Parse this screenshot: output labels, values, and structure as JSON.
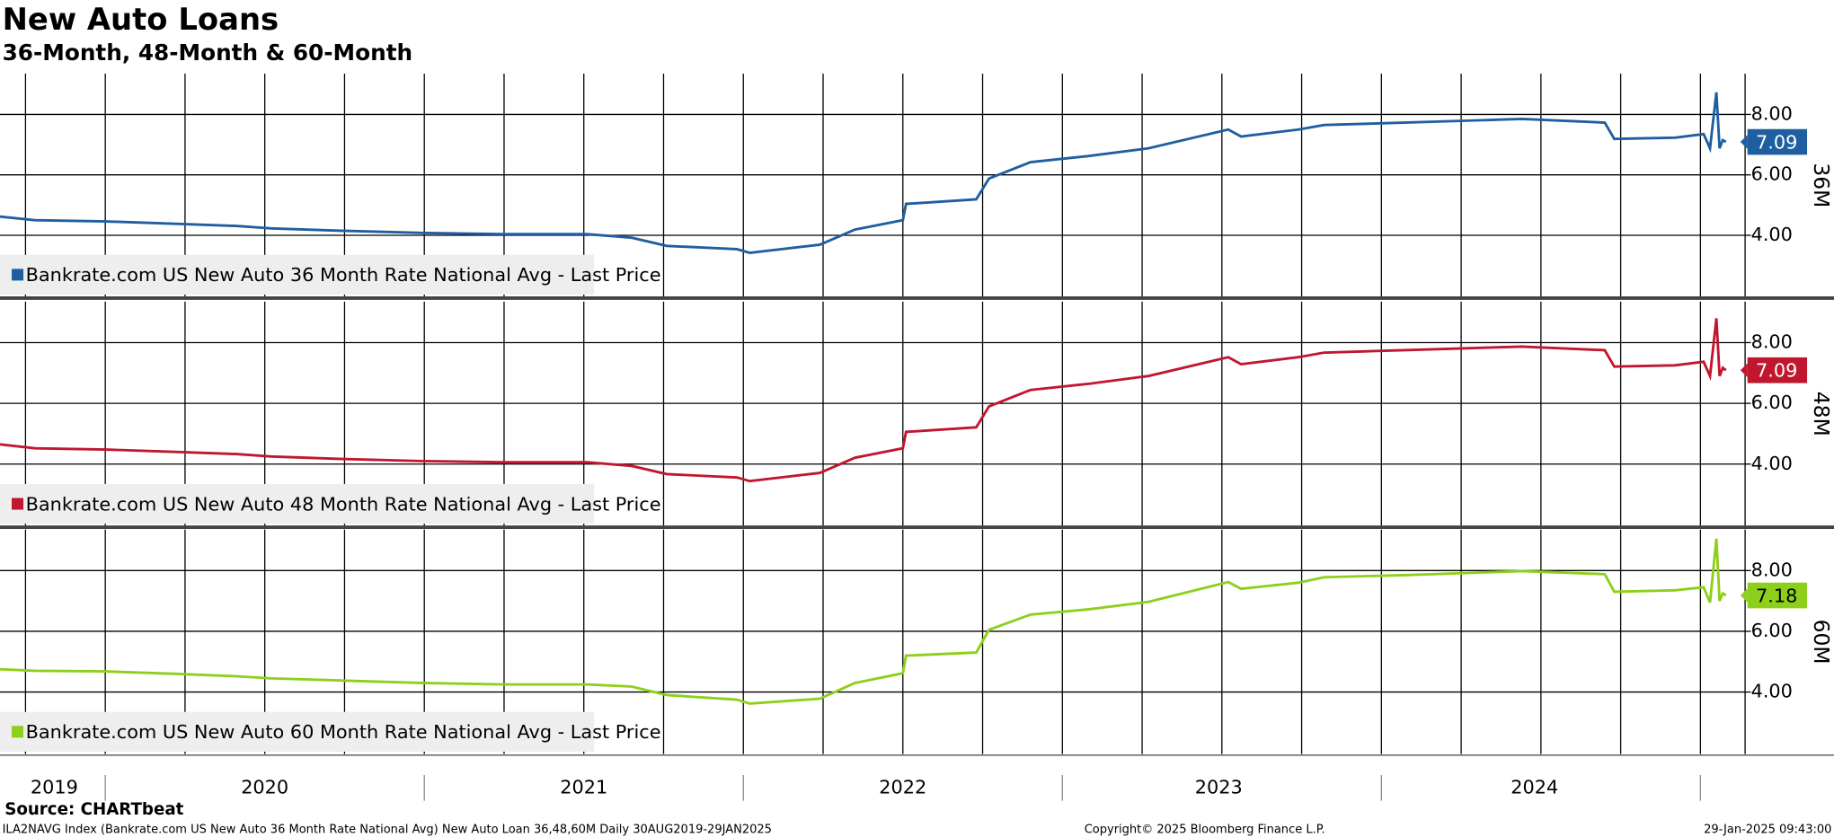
{
  "title": "New Auto Loans",
  "subtitle": "36-Month, 48-Month & 60-Month",
  "source": "Source: CHARTbeat",
  "footer": {
    "left": "ILA2NAVG Index (Bankrate.com US New Auto 36 Month Rate National Avg) New Auto Loan 36,48,60M  Daily 30AUG2019-29JAN2025",
    "center": "Copyright© 2025 Bloomberg Finance L.P.",
    "right": "29-Jan-2025 09:43:00"
  },
  "chart_data": [
    {
      "type": "line",
      "ylabel": "36M",
      "x": [
        2019.67,
        2019.78,
        2020.0,
        2020.22,
        2020.41,
        2020.52,
        2020.74,
        2020.99,
        2021.25,
        2021.51,
        2021.65,
        2021.76,
        2021.98,
        2022.02,
        2022.24,
        2022.35,
        2022.5,
        2022.51,
        2022.73,
        2022.77,
        2022.9,
        2023.08,
        2023.27,
        2023.52,
        2023.56,
        2023.74,
        2023.82,
        2024.07,
        2024.44,
        2024.7,
        2024.73,
        2024.92,
        2025.01,
        2025.03,
        2025.05,
        2025.06,
        2025.07,
        2025.08
      ],
      "xlim": [
        2019.67,
        2025.14
      ],
      "x_minor_ticks": [
        2019.75,
        2020.0,
        2020.25,
        2020.5,
        2020.75,
        2021.0,
        2021.25,
        2021.5,
        2021.75,
        2022.0,
        2022.25,
        2022.5,
        2022.75,
        2023.0,
        2023.25,
        2023.5,
        2023.75,
        2024.0,
        2024.25,
        2024.5,
        2024.75,
        2025.0
      ],
      "ylim": [
        1.96,
        9.35
      ],
      "yticks": [
        {
          "value": 4,
          "label": "4.00"
        },
        {
          "value": 6,
          "label": "6.00"
        },
        {
          "value": 8,
          "label": "8.00"
        }
      ],
      "grid": true,
      "series": [
        {
          "name": "Bankrate.com US New Auto 36 Month Rate National Avg - Last Price",
          "color": "#1f5fa0",
          "values": [
            4.62,
            4.5,
            4.46,
            4.38,
            4.31,
            4.23,
            4.15,
            4.08,
            4.04,
            4.04,
            3.92,
            3.65,
            3.54,
            3.42,
            3.69,
            4.19,
            4.5,
            5.04,
            5.19,
            5.88,
            6.42,
            6.62,
            6.88,
            7.5,
            7.27,
            7.5,
            7.65,
            7.73,
            7.85,
            7.73,
            7.19,
            7.23,
            7.35,
            6.88,
            8.73,
            6.88,
            7.15,
            7.09
          ],
          "value_labels": [
            null,
            null,
            null,
            null,
            null,
            null,
            null,
            null,
            null,
            null,
            null,
            null,
            null,
            null,
            null,
            null,
            null,
            null,
            null,
            null,
            null,
            null,
            null,
            null,
            null,
            null,
            null,
            null,
            null,
            null,
            null,
            null,
            null,
            null,
            null,
            null,
            null,
            "7.09"
          ]
        }
      ]
    },
    {
      "type": "line",
      "ylabel": "48M",
      "x": [
        2019.67,
        2019.78,
        2020.0,
        2020.22,
        2020.41,
        2020.52,
        2020.74,
        2020.99,
        2021.25,
        2021.51,
        2021.65,
        2021.76,
        2021.98,
        2022.02,
        2022.24,
        2022.35,
        2022.5,
        2022.51,
        2022.73,
        2022.77,
        2022.9,
        2023.08,
        2023.27,
        2023.52,
        2023.56,
        2023.74,
        2023.82,
        2024.07,
        2024.44,
        2024.7,
        2024.73,
        2024.92,
        2025.01,
        2025.03,
        2025.05,
        2025.06,
        2025.07,
        2025.08
      ],
      "xlim": [
        2019.67,
        2025.14
      ],
      "x_minor_ticks": [
        2019.75,
        2020.0,
        2020.25,
        2020.5,
        2020.75,
        2021.0,
        2021.25,
        2021.5,
        2021.75,
        2022.0,
        2022.25,
        2022.5,
        2022.75,
        2023.0,
        2023.25,
        2023.5,
        2023.75,
        2024.0,
        2024.25,
        2024.5,
        2024.75,
        2025.0
      ],
      "ylim": [
        1.96,
        9.35
      ],
      "yticks": [
        {
          "value": 4,
          "label": "4.00"
        },
        {
          "value": 6,
          "label": "6.00"
        },
        {
          "value": 8,
          "label": "8.00"
        }
      ],
      "grid": true,
      "series": [
        {
          "name": "Bankrate.com US New Auto 48 Month Rate National Avg - Last Price",
          "color": "#c0172f",
          "values": [
            4.65,
            4.52,
            4.48,
            4.4,
            4.33,
            4.25,
            4.17,
            4.1,
            4.06,
            4.06,
            3.94,
            3.67,
            3.56,
            3.44,
            3.71,
            4.21,
            4.52,
            5.06,
            5.21,
            5.9,
            6.44,
            6.64,
            6.9,
            7.52,
            7.29,
            7.52,
            7.67,
            7.75,
            7.87,
            7.75,
            7.21,
            7.25,
            7.37,
            6.9,
            8.8,
            6.9,
            7.17,
            7.09
          ],
          "value_labels": [
            null,
            null,
            null,
            null,
            null,
            null,
            null,
            null,
            null,
            null,
            null,
            null,
            null,
            null,
            null,
            null,
            null,
            null,
            null,
            null,
            null,
            null,
            null,
            null,
            null,
            null,
            null,
            null,
            null,
            null,
            null,
            null,
            null,
            null,
            null,
            null,
            null,
            "7.09"
          ]
        }
      ]
    },
    {
      "type": "line",
      "ylabel": "60M",
      "x": [
        2019.67,
        2019.78,
        2020.0,
        2020.22,
        2020.41,
        2020.52,
        2020.74,
        2020.99,
        2021.25,
        2021.51,
        2021.65,
        2021.76,
        2021.98,
        2022.02,
        2022.24,
        2022.35,
        2022.5,
        2022.51,
        2022.73,
        2022.77,
        2022.9,
        2023.08,
        2023.27,
        2023.52,
        2023.56,
        2023.74,
        2023.82,
        2024.07,
        2024.44,
        2024.7,
        2024.73,
        2024.92,
        2025.01,
        2025.03,
        2025.05,
        2025.06,
        2025.07,
        2025.08
      ],
      "xlim": [
        2019.67,
        2025.14
      ],
      "x_minor_ticks": [
        2019.75,
        2020.0,
        2020.25,
        2020.5,
        2020.75,
        2021.0,
        2021.25,
        2021.5,
        2021.75,
        2022.0,
        2022.25,
        2022.5,
        2022.75,
        2023.0,
        2023.25,
        2023.5,
        2023.75,
        2024.0,
        2024.25,
        2024.5,
        2024.75,
        2025.0
      ],
      "xticks": [
        {
          "value": 2019.84,
          "label": "2019"
        },
        {
          "value": 2020.5,
          "label": "2020"
        },
        {
          "value": 2021.5,
          "label": "2021"
        },
        {
          "value": 2022.5,
          "label": "2022"
        },
        {
          "value": 2023.49,
          "label": "2023"
        },
        {
          "value": 2024.48,
          "label": "2024"
        }
      ],
      "ylim": [
        1.96,
        9.35
      ],
      "yticks": [
        {
          "value": 4,
          "label": "4.00"
        },
        {
          "value": 6,
          "label": "6.00"
        },
        {
          "value": 8,
          "label": "8.00"
        }
      ],
      "grid": true,
      "series": [
        {
          "name": "Bankrate.com US New Auto 60 Month Rate National Avg - Last Price",
          "color": "#8dcf1b",
          "values": [
            4.75,
            4.7,
            4.68,
            4.6,
            4.52,
            4.45,
            4.38,
            4.3,
            4.25,
            4.25,
            4.18,
            3.9,
            3.75,
            3.62,
            3.78,
            4.3,
            4.62,
            5.2,
            5.3,
            6.05,
            6.55,
            6.72,
            6.97,
            7.62,
            7.4,
            7.6,
            7.78,
            7.85,
            7.98,
            7.88,
            7.3,
            7.35,
            7.45,
            6.95,
            9.05,
            7.0,
            7.25,
            7.18
          ],
          "value_labels": [
            null,
            null,
            null,
            null,
            null,
            null,
            null,
            null,
            null,
            null,
            null,
            null,
            null,
            null,
            null,
            null,
            null,
            null,
            null,
            null,
            null,
            null,
            null,
            null,
            null,
            null,
            null,
            null,
            null,
            null,
            null,
            null,
            null,
            null,
            null,
            null,
            null,
            "7.18"
          ]
        }
      ]
    }
  ]
}
